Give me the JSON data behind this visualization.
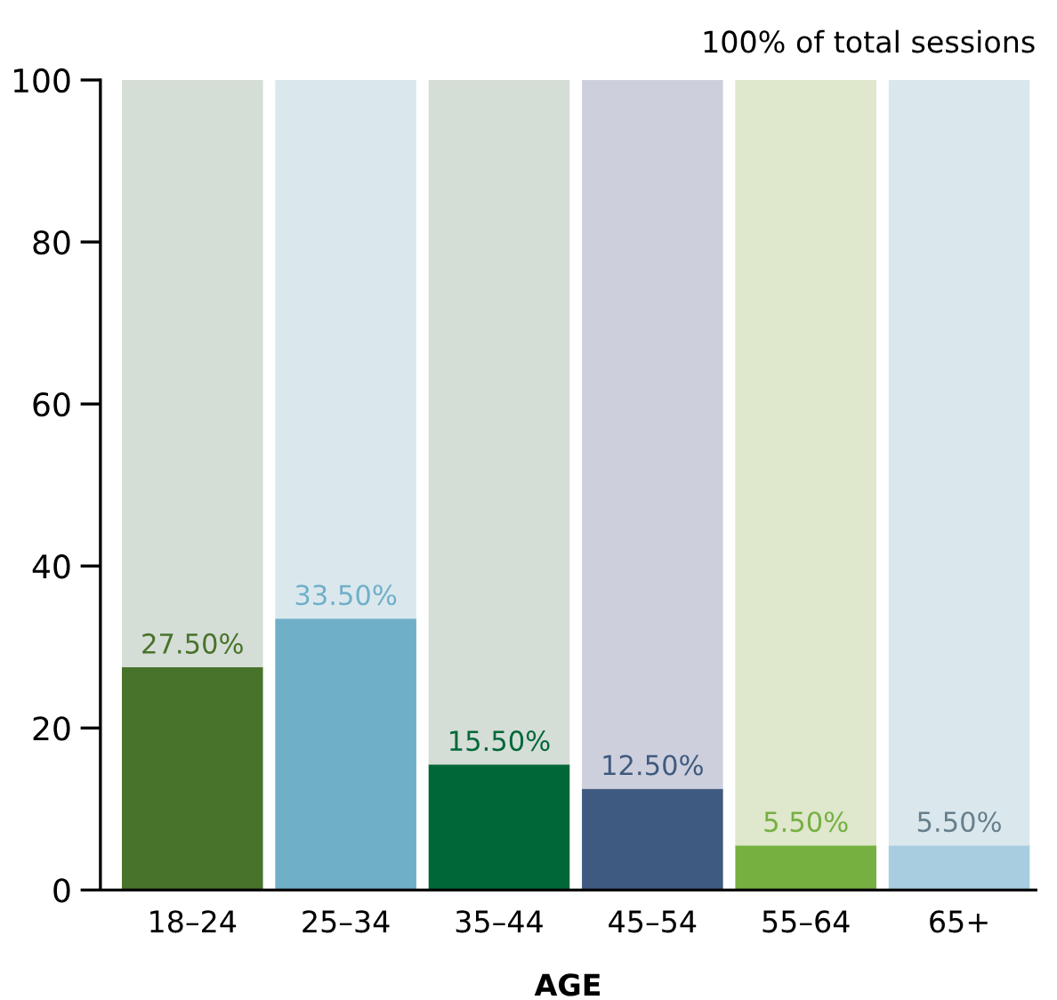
{
  "chart_data": {
    "type": "bar",
    "stacked": true,
    "xlabel": "AGE",
    "annotations": [
      "100% of total sessions"
    ],
    "categories": [
      "18–24",
      "25–34",
      "35–44",
      "45–54",
      "55–64",
      "65+"
    ],
    "series": [
      {
        "colors": [
          "#48732a",
          "#6fafc8",
          "#006838",
          "#3f5a80",
          "#76b041",
          "#a8cde0"
        ],
        "values": [
          27.5,
          33.5,
          15.5,
          12.5,
          5.5,
          5.5
        ],
        "value_labels": [
          "27.50%",
          "33.50%",
          "15.50%",
          "12.50%",
          "5.50%",
          "5.50%"
        ]
      },
      {
        "colors": [
          "#d5ddd7",
          "#dae8ee",
          "#d5ddd7",
          "#cdd0dc",
          "#dfe7cc",
          "#dae8ee"
        ],
        "values": [
          72.5,
          66.5,
          84.5,
          87.5,
          94.5,
          94.5
        ]
      }
    ],
    "ylim": [
      0,
      100
    ],
    "yticks": [
      0,
      20,
      40,
      60,
      80,
      100
    ],
    "grid": false,
    "legend": false
  }
}
